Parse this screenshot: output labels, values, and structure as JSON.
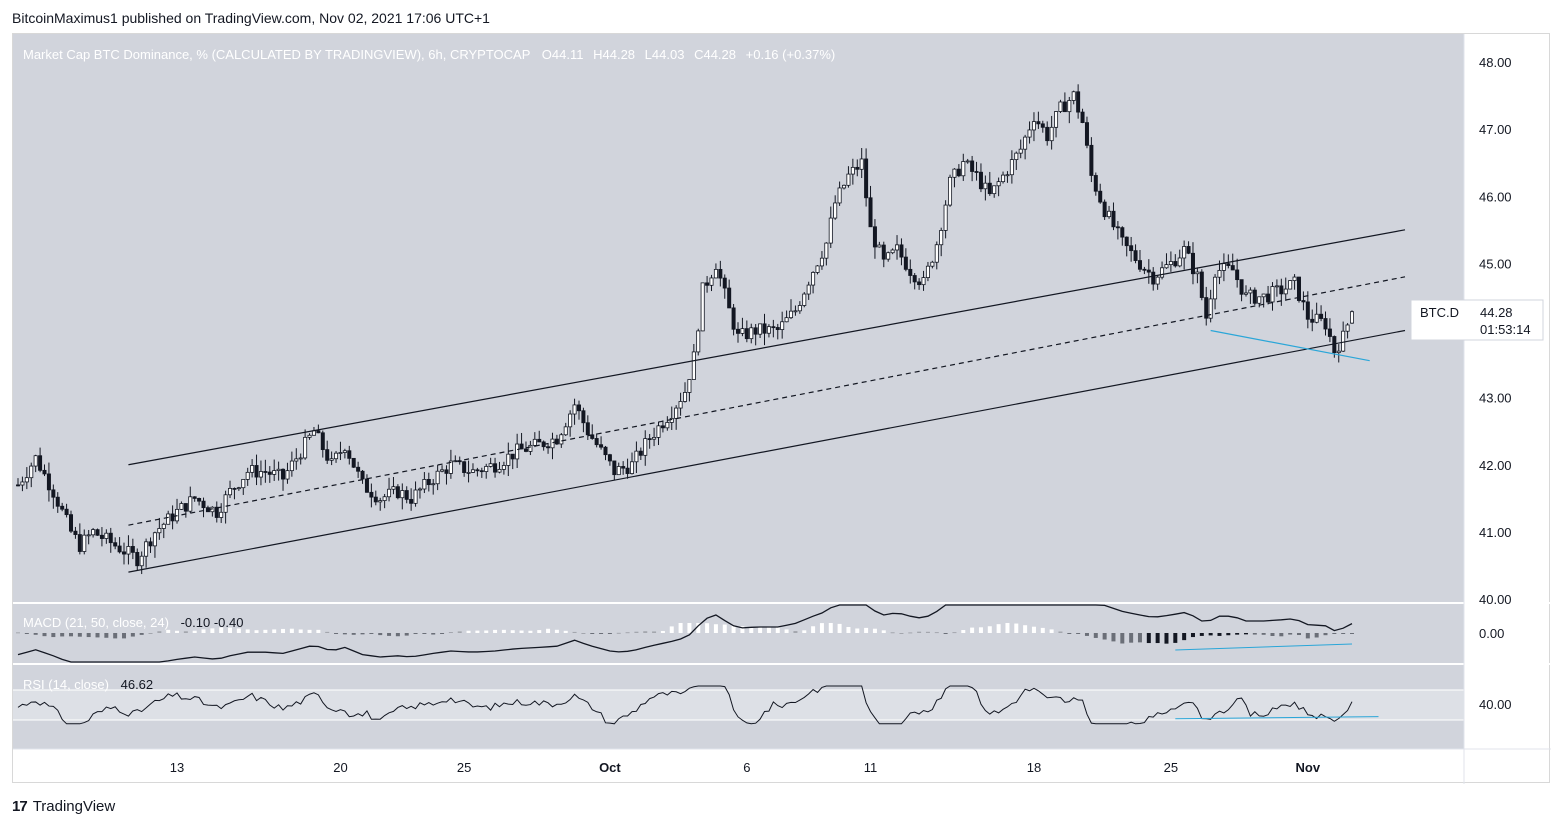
{
  "header": {
    "publisher": "BitcoinMaximus1 published on TradingView.com, Nov 02, 2021 17:06 UTC+1"
  },
  "main_pane": {
    "title": "Market Cap BTC Dominance, % (CALCULATED BY TRADINGVIEW), 6h, CRYPTOCAP",
    "ohlc": {
      "o_label": "O",
      "o": "44.11",
      "h_label": "H",
      "h": "44.28",
      "l_label": "L",
      "l": "44.03",
      "c_label": "C",
      "c": "44.28",
      "change": "+0.16 (+0.37%)"
    },
    "price_label": {
      "symbol": "BTC.D",
      "price": "44.28",
      "countdown": "01:53:14"
    },
    "y_ticks": [
      "48.00",
      "47.00",
      "46.00",
      "45.00",
      "44.00",
      "43.00",
      "42.00",
      "41.00",
      "40.00"
    ]
  },
  "macd_pane": {
    "title": "MACD (21, 50, close, 24)",
    "values": "-0.10  -0.40",
    "y_tick": "0.00"
  },
  "rsi_pane": {
    "title": "RSI (14, close)",
    "value": "46.62",
    "y_tick": "40.00"
  },
  "x_axis": {
    "labels": [
      "13",
      "20",
      "25",
      "Oct",
      "6",
      "11",
      "18",
      "25",
      "Nov"
    ]
  },
  "footer": {
    "logo_mark": "17",
    "brand": "TradingView"
  },
  "colors": {
    "pane_bg": "#d1d4dc",
    "rsi_band": "#dde0e6",
    "divergence": "#2aa6d8",
    "candle_up": "#ffffff",
    "candle_down": "#131722"
  },
  "chart_data": {
    "type": "candlestick",
    "title": "Market Cap BTC Dominance, % (CALCULATED BY TRADINGVIEW), 6h, CRYPTOCAP",
    "ylim": [
      40,
      48
    ],
    "x_tick_labels": [
      "13",
      "20",
      "25",
      "Oct",
      "6",
      "11",
      "18",
      "25",
      "Nov"
    ],
    "close_path": [
      [
        0,
        41.7
      ],
      [
        4,
        42.1
      ],
      [
        8,
        41.6
      ],
      [
        12,
        41.0
      ],
      [
        14,
        40.8
      ],
      [
        17,
        41.0
      ],
      [
        22,
        40.8
      ],
      [
        27,
        40.6
      ],
      [
        31,
        41.0
      ],
      [
        36,
        41.3
      ],
      [
        40,
        41.5
      ],
      [
        45,
        41.3
      ],
      [
        48,
        41.6
      ],
      [
        52,
        41.9
      ],
      [
        56,
        41.9
      ],
      [
        60,
        41.8
      ],
      [
        64,
        42.2
      ],
      [
        67,
        42.5
      ],
      [
        71,
        42.0
      ],
      [
        74,
        42.3
      ],
      [
        78,
        41.7
      ],
      [
        82,
        41.5
      ],
      [
        86,
        41.6
      ],
      [
        89,
        41.5
      ],
      [
        94,
        41.8
      ],
      [
        98,
        42.0
      ],
      [
        103,
        41.9
      ],
      [
        108,
        42.0
      ],
      [
        113,
        42.2
      ],
      [
        118,
        42.3
      ],
      [
        122,
        42.4
      ],
      [
        126,
        42.9
      ],
      [
        129,
        42.5
      ],
      [
        132,
        42.2
      ],
      [
        135,
        41.9
      ],
      [
        139,
        42.0
      ],
      [
        143,
        42.4
      ],
      [
        148,
        42.8
      ],
      [
        151,
        43.1
      ],
      [
        153,
        43.6
      ],
      [
        155,
        44.6
      ],
      [
        158,
        45.0
      ],
      [
        161,
        44.3
      ],
      [
        163,
        43.9
      ],
      [
        167,
        44.0
      ],
      [
        172,
        44.0
      ],
      [
        176,
        44.3
      ],
      [
        180,
        44.9
      ],
      [
        183,
        45.3
      ],
      [
        185,
        45.9
      ],
      [
        188,
        46.3
      ],
      [
        191,
        46.5
      ],
      [
        193,
        45.5
      ],
      [
        196,
        45.0
      ],
      [
        199,
        45.2
      ],
      [
        202,
        44.9
      ],
      [
        205,
        44.7
      ],
      [
        208,
        45.3
      ],
      [
        211,
        46.2
      ],
      [
        214,
        46.5
      ],
      [
        217,
        46.3
      ],
      [
        220,
        46.0
      ],
      [
        223,
        46.3
      ],
      [
        227,
        46.7
      ],
      [
        230,
        47.2
      ],
      [
        233,
        46.9
      ],
      [
        236,
        47.3
      ],
      [
        239,
        47.5
      ],
      [
        241,
        47.1
      ],
      [
        243,
        46.3
      ],
      [
        246,
        45.8
      ],
      [
        250,
        45.3
      ],
      [
        254,
        45.0
      ],
      [
        257,
        44.8
      ],
      [
        261,
        45.0
      ],
      [
        264,
        45.2
      ],
      [
        267,
        44.8
      ],
      [
        269,
        44.2
      ],
      [
        271,
        44.9
      ],
      [
        275,
        44.9
      ],
      [
        278,
        44.5
      ],
      [
        282,
        44.5
      ],
      [
        286,
        44.6
      ],
      [
        289,
        44.7
      ],
      [
        292,
        44.2
      ],
      [
        296,
        44.1
      ],
      [
        298,
        43.7
      ],
      [
        300,
        43.9
      ],
      [
        302,
        44.28
      ]
    ],
    "channel": {
      "upper": [
        [
          25,
          42.0
        ],
        [
          314,
          45.5
        ]
      ],
      "middle": [
        [
          25,
          41.1
        ],
        [
          314,
          44.8
        ]
      ],
      "lower": [
        [
          25,
          40.4
        ],
        [
          314,
          44.0
        ]
      ]
    },
    "divergence_lines": {
      "price": [
        [
          270,
          44.0
        ],
        [
          306,
          43.55
        ]
      ],
      "rsi": [
        [
          262,
          36.0
        ],
        [
          308,
          38.5
        ]
      ]
    },
    "macd": {
      "params": "21, 50, close, 24",
      "macd": -0.1,
      "signal": -0.4,
      "ylim": [
        -1.0,
        1.0
      ]
    },
    "rsi": {
      "params": "14, close",
      "value": 46.62,
      "band": [
        30,
        70
      ]
    }
  }
}
